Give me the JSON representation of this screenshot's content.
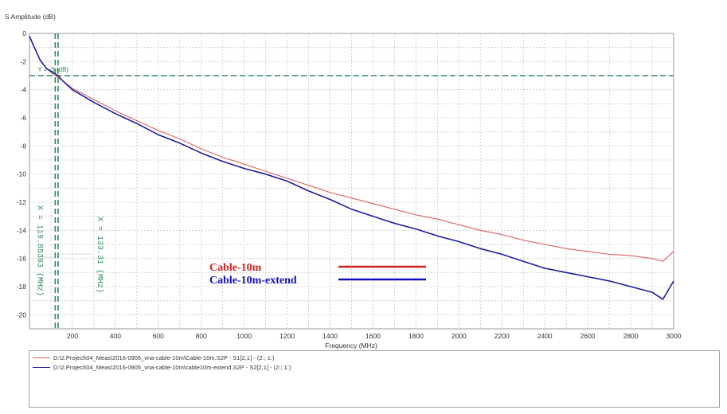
{
  "chart_data": {
    "type": "line",
    "ylabel": "S Amplitude (dB)",
    "xlabel": "Frequency (MHz)",
    "xlim": [
      0,
      3000
    ],
    "ylim": [
      -21,
      0
    ],
    "xticks": [
      200,
      400,
      600,
      800,
      1000,
      1200,
      1400,
      1600,
      1800,
      2000,
      2200,
      2400,
      2600,
      2800,
      3000
    ],
    "yticks": [
      0,
      -2,
      -4,
      -6,
      -8,
      -10,
      -12,
      -14,
      -16,
      -18,
      -20
    ],
    "grid": true,
    "series": [
      {
        "name": "Cable-10m",
        "color": "#e06060",
        "x": [
          0,
          20,
          50,
          80,
          119.85,
          150,
          200,
          300,
          400,
          500,
          600,
          700,
          800,
          900,
          1000,
          1100,
          1200,
          1300,
          1400,
          1500,
          1600,
          1700,
          1800,
          1900,
          2000,
          2100,
          2200,
          2300,
          2400,
          2500,
          2600,
          2700,
          2800,
          2900,
          2950,
          3000
        ],
        "y": [
          -0.2,
          -0.9,
          -1.9,
          -2.5,
          -3.0,
          -3.3,
          -3.9,
          -4.7,
          -5.5,
          -6.2,
          -6.9,
          -7.5,
          -8.2,
          -8.8,
          -9.3,
          -9.8,
          -10.3,
          -10.8,
          -11.3,
          -11.7,
          -12.1,
          -12.5,
          -12.9,
          -13.2,
          -13.6,
          -14.0,
          -14.3,
          -14.7,
          -15.0,
          -15.3,
          -15.5,
          -15.7,
          -15.8,
          -16.0,
          -16.2,
          -15.5
        ]
      },
      {
        "name": "Cable-10m-extend",
        "color": "#1c1c9e",
        "x": [
          0,
          20,
          50,
          80,
          133.31,
          150,
          200,
          300,
          400,
          500,
          600,
          700,
          800,
          900,
          1000,
          1100,
          1200,
          1300,
          1400,
          1500,
          1600,
          1700,
          1800,
          1900,
          2000,
          2100,
          2200,
          2300,
          2400,
          2500,
          2600,
          2700,
          2800,
          2900,
          2950,
          3000
        ],
        "y": [
          -0.2,
          -0.9,
          -1.9,
          -2.5,
          -3.0,
          -3.3,
          -4.0,
          -4.9,
          -5.7,
          -6.4,
          -7.2,
          -7.8,
          -8.5,
          -9.1,
          -9.6,
          -10.0,
          -10.5,
          -11.2,
          -11.8,
          -12.5,
          -13.0,
          -13.5,
          -13.9,
          -14.4,
          -14.8,
          -15.3,
          -15.7,
          -16.2,
          -16.7,
          -17.0,
          -17.3,
          -17.6,
          -18.0,
          -18.4,
          -18.9,
          -17.6
        ]
      }
    ],
    "annotations": {
      "hline": {
        "y": -3,
        "label": "Y = -3 (dB)",
        "color": "#2e8b57"
      },
      "vlines": [
        {
          "x": 119.85,
          "label": "X = 119.85303 (MHz)",
          "color": "#2e8b57"
        },
        {
          "x": 133.31,
          "label": "X = 133.31 (MHz)",
          "color": "#2e8b57"
        }
      ]
    },
    "inline_legend": [
      {
        "label": "Cable-10m",
        "color": "#d02020"
      },
      {
        "label": "Cable-10m-extend",
        "color": "#1010c0"
      }
    ]
  },
  "legend_panel": {
    "rows": [
      {
        "text": "D:\\2.Project\\04_Meas\\2016-0905_vna-cable-10m\\Cable-10m.S2P - S1[2,1] - (2:; 1:)",
        "color": "#e06060"
      },
      {
        "text": "D:\\2.Project\\04_Meas\\2016-0905_vna-cable-10m\\cable10m-extend.S2P - S2[2,1] - (2:; 1:)",
        "color": "#1c1c9e"
      }
    ]
  }
}
